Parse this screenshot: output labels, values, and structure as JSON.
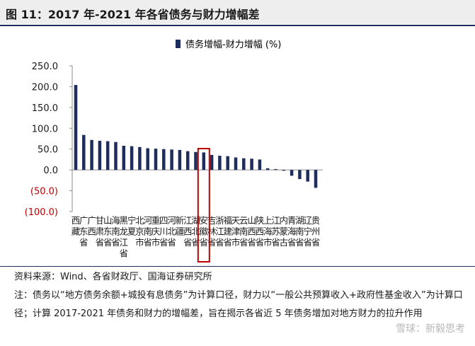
{
  "figure": {
    "title": "图 11：2017 年-2021 年各省债务与财力增幅差",
    "source": "资料来源：Wind、各省财政厅、国海证券研究所",
    "note": "注：债务以“地方债务余额+城投有息债务”为计算口径，财力以“一般公共预算收入+政府性基金收入”为计算口径；计算 2017-2021 年债务和财力的增幅差，旨在揭示各省近 5 年债务增加对地方财力的拉升作用",
    "watermark": "雪球：新毅思考"
  },
  "chart_data": {
    "type": "bar",
    "categories": [
      "西藏",
      "广东省",
      "广西",
      "甘肃省",
      "山东省",
      "海南省",
      "黑龙江省",
      "宁夏",
      "北京市",
      "河南省",
      "重庆市",
      "四川省",
      "河北省",
      "新疆",
      "江西省",
      "湖北省",
      "安徽省",
      "吉林省",
      "浙江省",
      "福建省",
      "天津市",
      "云南省",
      "山西省",
      "陕西省",
      "上海市",
      "江苏省",
      "内蒙古",
      "青海省",
      "湖南省",
      "辽宁省",
      "贵州省"
    ],
    "values": [
      204,
      84,
      72,
      70,
      69,
      67,
      58,
      57,
      55,
      52,
      51,
      50,
      49,
      48,
      45,
      43,
      42,
      36,
      34,
      33,
      30,
      28,
      27,
      25,
      4,
      2,
      -2,
      -14,
      -22,
      -28,
      -43
    ],
    "series": [
      {
        "name": "债务增幅-财力增幅 (%)"
      }
    ],
    "y_tick_labels": [
      "250.0",
      "200.0",
      "150.0",
      "100.0",
      "50.0",
      "0.0",
      "(50.0)",
      "(100.0)"
    ],
    "y_tick_values": [
      250,
      200,
      150,
      100,
      50,
      0,
      -50,
      -100
    ],
    "ylim": [
      -100,
      250
    ],
    "highlight_index": 16,
    "colors": {
      "bar": "#1f2d5c",
      "highlight": "#c00000",
      "negative_tick": "#c00000"
    },
    "legend_position": "top"
  }
}
